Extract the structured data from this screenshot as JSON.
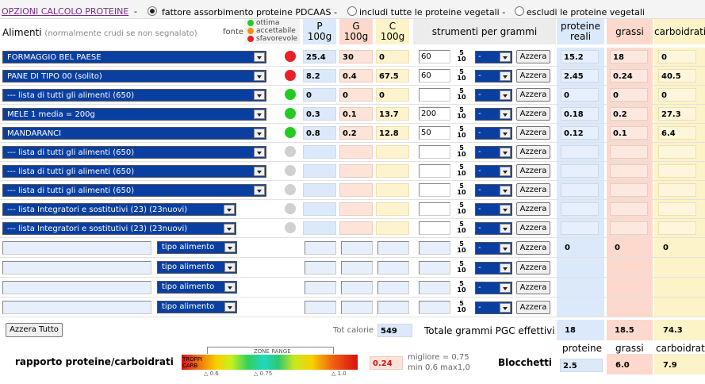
{
  "options": {
    "link": "OPZIONI CALCOLO PROTEINE",
    "dash": "-",
    "radios": [
      {
        "label": "fattore assorbimento proteine PDCAAS -",
        "checked": true
      },
      {
        "label": "includi tutte le proteine vegetali -",
        "checked": false
      },
      {
        "label": "escludi le proteine vegetali",
        "checked": false
      }
    ]
  },
  "header": {
    "alimenti": "Alimenti",
    "alimenti_note": "(normalmente crudi se non segnalato)",
    "fonte": "fonte",
    "legend": [
      {
        "label": "ottima",
        "color": "#22cc22"
      },
      {
        "label": "accettabile",
        "color": "#f29400"
      },
      {
        "label": "sfavorevole",
        "color": "#e8202a"
      }
    ],
    "p": "P",
    "g": "G",
    "c": "C",
    "per100": "100g",
    "strumenti": "strumenti per grammi",
    "proteine_reali": [
      "proteine",
      "reali"
    ],
    "grassi": "grassi",
    "carboidrati": "carboidrati"
  },
  "rows": [
    {
      "food": "FORMAGGIO BEL PAESE",
      "dot": "#e8202a",
      "p": "25.4",
      "g": "30",
      "c": "0",
      "grams": "60",
      "unit": "-",
      "btn": "Azzera",
      "pr": "15.2",
      "gr": "18",
      "ca": "0"
    },
    {
      "food": "PANE DI TIPO 00 (solito)",
      "dot": "#e8202a",
      "p": "8.2",
      "g": "0.4",
      "c": "67.5",
      "grams": "60",
      "unit": "-",
      "btn": "Azzera",
      "pr": "2.45",
      "gr": "0.24",
      "ca": "40.5"
    },
    {
      "food": "--- lista di tutti gli alimenti (650)",
      "dot": "#22cc22",
      "p": "0",
      "g": "0",
      "c": "0",
      "grams": "",
      "unit": "-",
      "btn": "Azzera",
      "pr": "0",
      "gr": "0",
      "ca": "0"
    },
    {
      "food": "MELE 1 media = 200g",
      "dot": "#22cc22",
      "p": "0.3",
      "g": "0.1",
      "c": "13.7",
      "grams": "200",
      "unit": "-",
      "btn": "Azzera",
      "pr": "0.18",
      "gr": "0.2",
      "ca": "27.3"
    },
    {
      "food": "MANDARANCI",
      "dot": "#22cc22",
      "p": "0.8",
      "g": "0.2",
      "c": "12.8",
      "grams": "50",
      "unit": "-",
      "btn": "Azzera",
      "pr": "0.12",
      "gr": "0.1",
      "ca": "6.4"
    },
    {
      "food": "--- lista di tutti gli alimenti (650)",
      "dot": "#d0d0d0",
      "p": "",
      "g": "",
      "c": "",
      "grams": "",
      "unit": "-",
      "btn": "Azzera",
      "pr": "",
      "gr": "",
      "ca": ""
    },
    {
      "food": "--- lista di tutti gli alimenti (650)",
      "dot": "#d0d0d0",
      "p": "",
      "g": "",
      "c": "",
      "grams": "",
      "unit": "-",
      "btn": "Azzera",
      "pr": "",
      "gr": "",
      "ca": ""
    },
    {
      "food": "--- lista di tutti gli alimenti (650)",
      "dot": "#d0d0d0",
      "p": "",
      "g": "",
      "c": "",
      "grams": "",
      "unit": "-",
      "btn": "Azzera",
      "pr": "",
      "gr": "",
      "ca": ""
    },
    {
      "food": "--- lista Integratori e sostitutivi (23) (23nuovi)",
      "dot": "#d0d0d0",
      "p": "",
      "g": "",
      "c": "",
      "grams": "",
      "unit": "-",
      "btn": "Azzera",
      "pr": "",
      "gr": "",
      "ca": ""
    },
    {
      "food": "--- lista Integratori e sostitutivi (23) (23nuovi)",
      "dot": "#d0d0d0",
      "p": "",
      "g": "",
      "c": "",
      "grams": "",
      "unit": "-",
      "btn": "Azzera",
      "pr": "",
      "gr": "",
      "ca": ""
    }
  ],
  "custom_rows": [
    {
      "name": "",
      "tipo": "tipo alimento",
      "p": "",
      "g": "",
      "c": "",
      "grams": "",
      "unit": "-",
      "btn": "Azzera",
      "pr": "0",
      "gr": "0",
      "ca": "0"
    },
    {
      "name": "",
      "tipo": "tipo alimento",
      "p": "",
      "g": "",
      "c": "",
      "grams": "",
      "unit": "-",
      "btn": "Azzera",
      "pr": "",
      "gr": "",
      "ca": ""
    },
    {
      "name": "",
      "tipo": "tipo alimento",
      "p": "",
      "g": "",
      "c": "",
      "grams": "",
      "unit": "-",
      "btn": "Azzera",
      "pr": "",
      "gr": "",
      "ca": ""
    },
    {
      "name": "",
      "tipo": "tipo alimento",
      "p": "",
      "g": "",
      "c": "",
      "grams": "",
      "unit": "-",
      "btn": "Azzera",
      "pr": "",
      "gr": "",
      "ca": ""
    }
  ],
  "spin": {
    "top": "5",
    "bottom": "10"
  },
  "footer": {
    "azzera_tutto": "Azzera Tutto",
    "tot_calorie_label": "Tot calorie",
    "tot_calorie_value": "549",
    "totale_label": "Totale grammi PGC effettivi",
    "tot_proteine": "18",
    "tot_grassi": "18.5",
    "tot_carboidrati": "74.3",
    "col_proteine": "proteine",
    "col_grassi": "grassi",
    "col_carboidrati": "carboidrati",
    "rapporto_label": "rapporto proteine/carboidrati",
    "zone_range": "ZONE RANGE",
    "troppi_carb": "TROPPI CARB",
    "ticks": [
      "△ 0.6",
      "△ 0.75",
      "△ 1.0"
    ],
    "rapporto_value": "0.24",
    "migliore": "migliore = 0,75",
    "minmax": "min 0,6 max1,0",
    "blocchetti_label": "Blocchetti",
    "blk_proteine": "2.5",
    "blk_grassi": "6.0",
    "blk_carboidrati": "7.9"
  }
}
